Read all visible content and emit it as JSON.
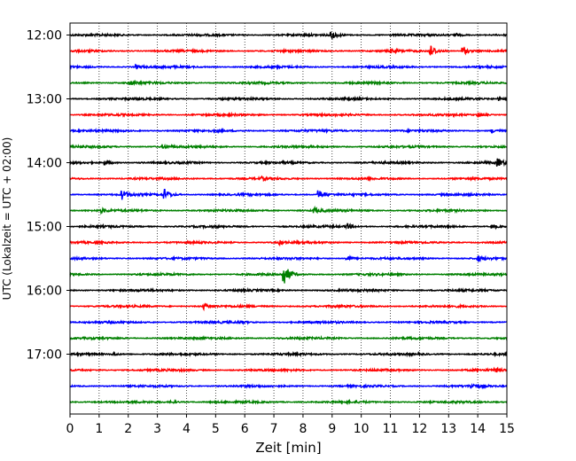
{
  "chart_data": {
    "type": "line",
    "title": "",
    "xlabel": "Zeit  [min]",
    "ylabel": "UTC (Lokalzeit = UTC + 02:00)",
    "xlim": [
      0,
      15
    ],
    "x_ticks": [
      "0",
      "1",
      "2",
      "3",
      "4",
      "5",
      "6",
      "7",
      "8",
      "9",
      "10",
      "11",
      "12",
      "13",
      "14",
      "15"
    ],
    "y_ticks": [
      "12:00",
      "13:00",
      "14:00",
      "15:00",
      "16:00",
      "17:00"
    ],
    "grid": "vertical dotted",
    "colors": [
      "#000000",
      "#ff0000",
      "#0000ff",
      "#008000"
    ],
    "series": [
      {
        "start": "12:00",
        "color": "#000000",
        "events": [
          {
            "x": 9.0,
            "amp": 0.4
          },
          {
            "x": 13.2,
            "amp": 0.25
          }
        ]
      },
      {
        "start": "12:15",
        "color": "#ff0000",
        "events": [
          {
            "x": 12.35,
            "amp": 0.75
          },
          {
            "x": 13.5,
            "amp": 0.4
          },
          {
            "x": 11.0,
            "amp": 0.2
          }
        ]
      },
      {
        "start": "12:30",
        "color": "#0000ff",
        "events": [
          {
            "x": 2.3,
            "amp": 0.2
          }
        ]
      },
      {
        "start": "12:45",
        "color": "#008000",
        "events": [
          {
            "x": 2.1,
            "amp": 0.2
          }
        ]
      },
      {
        "start": "13:00",
        "color": "#000000",
        "events": [
          {
            "x": 14.7,
            "amp": 0.2
          }
        ]
      },
      {
        "start": "13:15",
        "color": "#ff0000",
        "events": [
          {
            "x": 14.0,
            "amp": 0.3
          }
        ]
      },
      {
        "start": "13:30",
        "color": "#0000ff",
        "events": [
          {
            "x": 14.5,
            "amp": 0.2
          }
        ]
      },
      {
        "start": "13:45",
        "color": "#008000",
        "events": [
          {
            "x": 3.2,
            "amp": 0.2
          }
        ]
      },
      {
        "start": "14:00",
        "color": "#000000",
        "events": [
          {
            "x": 1.2,
            "amp": 0.3
          },
          {
            "x": 14.7,
            "amp": 0.4
          }
        ]
      },
      {
        "start": "14:15",
        "color": "#ff0000",
        "events": [
          {
            "x": 6.6,
            "amp": 0.15
          }
        ]
      },
      {
        "start": "14:30",
        "color": "#0000ff",
        "events": [
          {
            "x": 1.8,
            "amp": 0.5
          },
          {
            "x": 3.25,
            "amp": 0.55
          },
          {
            "x": 8.55,
            "amp": 0.5
          }
        ]
      },
      {
        "start": "14:45",
        "color": "#008000",
        "events": [
          {
            "x": 8.4,
            "amp": 0.3
          },
          {
            "x": 1.1,
            "amp": 0.2
          }
        ]
      },
      {
        "start": "15:00",
        "color": "#000000",
        "events": [
          {
            "x": 9.5,
            "amp": 0.3
          },
          {
            "x": 14.5,
            "amp": 0.2
          }
        ]
      },
      {
        "start": "15:15",
        "color": "#ff0000",
        "events": [
          {
            "x": 7.2,
            "amp": 0.2
          }
        ]
      },
      {
        "start": "15:30",
        "color": "#0000ff",
        "events": [
          {
            "x": 9.5,
            "amp": 0.3
          },
          {
            "x": 14.0,
            "amp": 0.3
          }
        ]
      },
      {
        "start": "15:45",
        "color": "#008000",
        "events": [
          {
            "x": 7.35,
            "amp": 1.1
          }
        ]
      },
      {
        "start": "16:00",
        "color": "#000000",
        "events": []
      },
      {
        "start": "16:15",
        "color": "#ff0000",
        "events": [
          {
            "x": 4.6,
            "amp": 0.3
          }
        ]
      },
      {
        "start": "16:30",
        "color": "#0000ff",
        "events": [
          {
            "x": 5.8,
            "amp": 0.15
          }
        ]
      },
      {
        "start": "16:45",
        "color": "#008000",
        "events": []
      },
      {
        "start": "17:00",
        "color": "#000000",
        "events": [
          {
            "x": 1.5,
            "amp": 0.15
          }
        ]
      },
      {
        "start": "17:15",
        "color": "#ff0000",
        "events": [
          {
            "x": 14.6,
            "amp": 0.2
          }
        ]
      },
      {
        "start": "17:30",
        "color": "#0000ff",
        "events": [
          {
            "x": 13.8,
            "amp": 0.2
          }
        ]
      },
      {
        "start": "17:45",
        "color": "#008000",
        "events": [
          {
            "x": 3.5,
            "amp": 0.15
          }
        ]
      }
    ]
  }
}
